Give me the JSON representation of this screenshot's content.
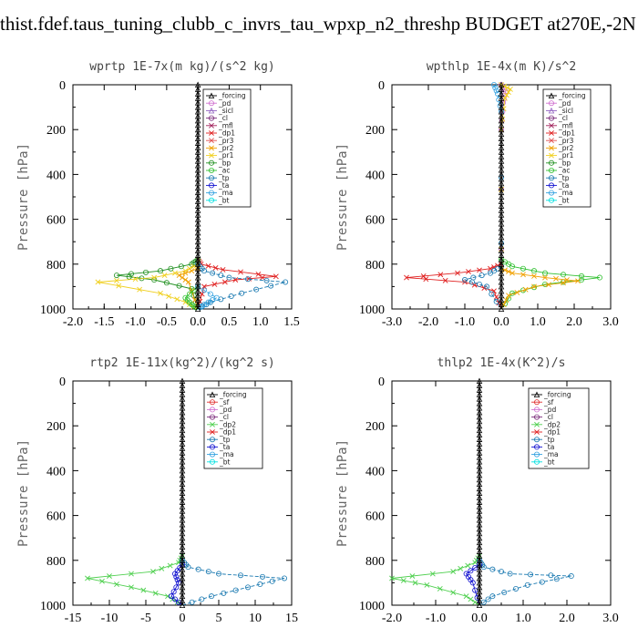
{
  "page": {
    "title": "thist.fdef.taus_tuning_clubb_c_invrs_tau_wpxp_n2_threshp  BUDGET at270E,-2N"
  },
  "colors": {
    "_forcing": "#000000",
    "_pd": "#d070d0",
    "_sicl": "#9060c0",
    "_cl": "#7a2a7a",
    "_mfl": "#a0205a",
    "_dp1": "#e02020",
    "_pr3": "#e05050",
    "_pr2": "#f0a000",
    "_pr1": "#f0d020",
    "_bp": "#209020",
    "_ac": "#30c030",
    "_tp": "#1878b0",
    "_ta": "#1010d0",
    "_ma": "#30a0e0",
    "_bt": "#00e0e0",
    "_sf": "#e03030",
    "_dp2": "#50d050"
  },
  "chart_data": [
    {
      "type": "line",
      "title": "wprtp   1E-7x(m kg)/(s^2 kg)",
      "ylabel": "Pressure [hPa]",
      "xlim": [
        -2.0,
        1.5
      ],
      "ylim": [
        1000,
        0
      ],
      "xticks": [
        "-2.0",
        "-1.5",
        "-1.0",
        "-0.5",
        "0.0",
        "0.5",
        "1.0",
        "1.5"
      ],
      "yticks": [
        "0",
        "200",
        "400",
        "600",
        "800",
        "1000"
      ],
      "legend": [
        "_forcing",
        "_pd",
        "_sicl",
        "_cl",
        "_mfl",
        "_dp1",
        "_pr3",
        "_pr2",
        "_pr1",
        "_bp",
        "_ac",
        "_tp",
        "_ta",
        "_ma",
        "_bt"
      ],
      "series": [
        {
          "name": "_dp1",
          "points": [
            [
              0,
              780
            ],
            [
              0.05,
              800
            ],
            [
              0.4,
              825
            ],
            [
              1.25,
              855
            ],
            [
              0.6,
              870
            ],
            [
              0.1,
              900
            ],
            [
              0,
              1000
            ]
          ]
        },
        {
          "name": "_bp",
          "points": [
            [
              0,
              780
            ],
            [
              -0.1,
              800
            ],
            [
              -0.6,
              830
            ],
            [
              -1.3,
              850
            ],
            [
              -0.7,
              870
            ],
            [
              -0.1,
              910
            ],
            [
              0,
              1000
            ]
          ]
        },
        {
          "name": "_pr1",
          "points": [
            [
              0,
              800
            ],
            [
              -0.2,
              830
            ],
            [
              -0.7,
              860
            ],
            [
              -1.6,
              880
            ],
            [
              -0.6,
              930
            ],
            [
              -0.2,
              970
            ],
            [
              0,
              1000
            ]
          ]
        },
        {
          "name": "_tp",
          "points": [
            [
              0,
              800
            ],
            [
              0.1,
              830
            ],
            [
              0.5,
              860
            ],
            [
              1.4,
              880
            ],
            [
              0.7,
              930
            ],
            [
              0.2,
              970
            ],
            [
              0,
              1000
            ]
          ]
        },
        {
          "name": "_pr2",
          "points": [
            [
              0,
              820
            ],
            [
              -0.3,
              850
            ],
            [
              -0.15,
              880
            ],
            [
              0,
              1000
            ]
          ]
        },
        {
          "name": "_ac",
          "points": [
            [
              0,
              900
            ],
            [
              -0.2,
              950
            ],
            [
              -0.1,
              980
            ],
            [
              0,
              1000
            ]
          ]
        },
        {
          "name": "_ma",
          "points": [
            [
              0,
              900
            ],
            [
              0.3,
              950
            ],
            [
              0.1,
              980
            ],
            [
              0,
              1000
            ]
          ]
        },
        {
          "name": "_forcing",
          "points": [
            [
              0,
              0
            ],
            [
              0,
              1000
            ]
          ]
        }
      ]
    },
    {
      "type": "line",
      "title": "wpthlp   1E-4x(m K)/s^2",
      "ylabel": "Pressure [hPa]",
      "xlim": [
        -3.0,
        3.0
      ],
      "ylim": [
        1000,
        0
      ],
      "xticks": [
        "-3.0",
        "-2.0",
        "-1.0",
        "0.0",
        "1.0",
        "2.0",
        "3.0"
      ],
      "yticks": [
        "0",
        "200",
        "400",
        "600",
        "800",
        "1000"
      ],
      "legend": [
        "_forcing",
        "_pd",
        "_sicl",
        "_cl",
        "_mfl",
        "_dp1",
        "_pr3",
        "_pr2",
        "_pr1",
        "_bp",
        "_ac",
        "_tp",
        "_ta",
        "_ma",
        "_bt"
      ],
      "series": [
        {
          "name": "_dp1",
          "points": [
            [
              0,
              800
            ],
            [
              -0.3,
              820
            ],
            [
              -1.2,
              840
            ],
            [
              -2.6,
              860
            ],
            [
              -1.0,
              880
            ],
            [
              -0.2,
              920
            ],
            [
              0,
              1000
            ]
          ]
        },
        {
          "name": "_ac",
          "points": [
            [
              0,
              780
            ],
            [
              0.3,
              810
            ],
            [
              1.2,
              840
            ],
            [
              2.7,
              860
            ],
            [
              1.2,
              890
            ],
            [
              0.3,
              930
            ],
            [
              0,
              1000
            ]
          ]
        },
        {
          "name": "_pr2",
          "points": [
            [
              0,
              820
            ],
            [
              0.3,
              840
            ],
            [
              1.2,
              860
            ],
            [
              2.1,
              875
            ],
            [
              0.9,
              900
            ],
            [
              0.2,
              940
            ],
            [
              0,
              1000
            ]
          ]
        },
        {
          "name": "_tp",
          "points": [
            [
              0,
              810
            ],
            [
              -0.3,
              840
            ],
            [
              -1.0,
              870
            ],
            [
              -0.4,
              900
            ],
            [
              0,
              1000
            ]
          ]
        },
        {
          "name": "_pd",
          "points": [
            [
              0,
              0
            ],
            [
              0.12,
              30
            ],
            [
              0.05,
              80
            ],
            [
              0,
              200
            ],
            [
              0,
              1000
            ]
          ]
        },
        {
          "name": "_pr1",
          "points": [
            [
              0,
              0
            ],
            [
              0.25,
              20
            ],
            [
              0.1,
              60
            ],
            [
              0,
              200
            ],
            [
              0,
              1000
            ]
          ]
        },
        {
          "name": "_ma",
          "points": [
            [
              -0.2,
              0
            ],
            [
              -0.1,
              40
            ],
            [
              0,
              120
            ],
            [
              0,
              1000
            ]
          ]
        },
        {
          "name": "_forcing",
          "points": [
            [
              0,
              0
            ],
            [
              0,
              1000
            ]
          ]
        }
      ]
    },
    {
      "type": "line",
      "title": "rtp2   1E-11x(kg^2)/(kg^2 s)",
      "ylabel": "Pressure [hPa]",
      "xlim": [
        -15,
        15
      ],
      "ylim": [
        1000,
        0
      ],
      "xticks": [
        "-15",
        "-10",
        "-5",
        "0",
        "5",
        "10",
        "15"
      ],
      "yticks": [
        "0",
        "200",
        "400",
        "600",
        "800",
        "1000"
      ],
      "legend": [
        "_forcing",
        "_sf",
        "_pd",
        "_cl",
        "_dp2",
        "_dp1",
        "_tp",
        "_ta",
        "_ma",
        "_bt"
      ],
      "series": [
        {
          "name": "_dp2",
          "points": [
            [
              0,
              780
            ],
            [
              -0.5,
              810
            ],
            [
              -4,
              850
            ],
            [
              -13,
              880
            ],
            [
              -7,
              920
            ],
            [
              -2,
              960
            ],
            [
              0,
              1000
            ]
          ]
        },
        {
          "name": "_tp",
          "points": [
            [
              0,
              800
            ],
            [
              0.8,
              830
            ],
            [
              5,
              860
            ],
            [
              14,
              880
            ],
            [
              9,
              920
            ],
            [
              4,
              960
            ],
            [
              0,
              1000
            ]
          ]
        },
        {
          "name": "_ta",
          "points": [
            [
              0,
              820
            ],
            [
              -1,
              860
            ],
            [
              -0.5,
              900
            ],
            [
              -1.5,
              960
            ],
            [
              0,
              1000
            ]
          ]
        },
        {
          "name": "_forcing",
          "points": [
            [
              0,
              0
            ],
            [
              0,
              1000
            ]
          ]
        }
      ]
    },
    {
      "type": "line",
      "title": "thlp2   1E-4x(K^2)/s",
      "ylabel": "Pressure [hPa]",
      "xlim": [
        -2.0,
        3.0
      ],
      "ylim": [
        1000,
        0
      ],
      "xticks": [
        "-2.0",
        "-1.0",
        "0.0",
        "1.0",
        "2.0",
        "3.0"
      ],
      "yticks": [
        "0",
        "200",
        "400",
        "600",
        "800",
        "1000"
      ],
      "legend": [
        "_forcing",
        "_sf",
        "_pd",
        "_cl",
        "_dp2",
        "_dp1",
        "_tp",
        "_ta",
        "_ma",
        "_bt"
      ],
      "series": [
        {
          "name": "_dp2",
          "points": [
            [
              0,
              780
            ],
            [
              -0.1,
              810
            ],
            [
              -0.6,
              850
            ],
            [
              -2.0,
              880
            ],
            [
              -1.2,
              910
            ],
            [
              -0.3,
              960
            ],
            [
              0,
              1000
            ]
          ]
        },
        {
          "name": "_tp",
          "points": [
            [
              0,
              800
            ],
            [
              0.1,
              830
            ],
            [
              0.7,
              860
            ],
            [
              2.1,
              870
            ],
            [
              1.1,
              910
            ],
            [
              0.3,
              960
            ],
            [
              0,
              1000
            ]
          ]
        },
        {
          "name": "_ta",
          "points": [
            [
              0,
              820
            ],
            [
              -0.3,
              860
            ],
            [
              -0.15,
              900
            ],
            [
              0,
              1000
            ]
          ]
        },
        {
          "name": "_forcing",
          "points": [
            [
              0,
              0
            ],
            [
              0,
              1000
            ]
          ]
        }
      ]
    }
  ]
}
